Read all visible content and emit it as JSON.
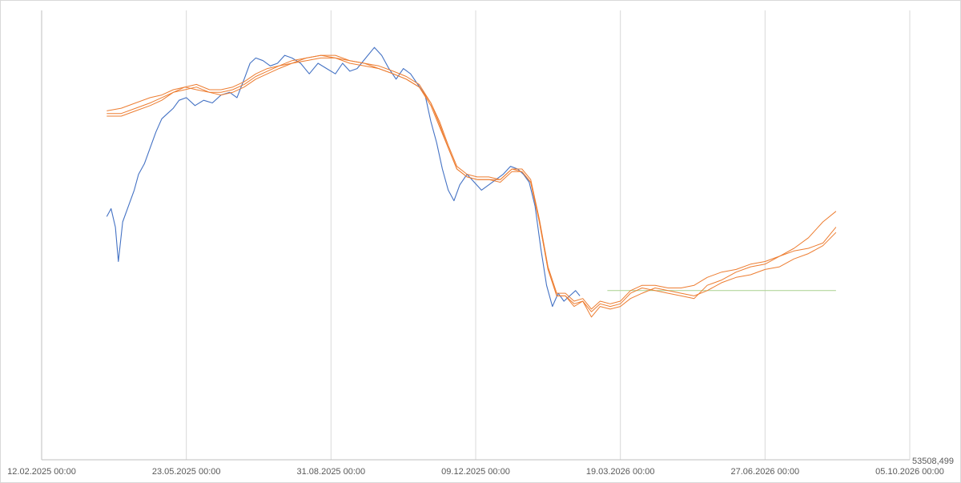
{
  "chart_data": {
    "type": "line",
    "title": "",
    "xlabel": "",
    "ylabel": "",
    "x_tick_labels": [
      "12.02.2025 00:00",
      "23.05.2025 00:00",
      "31.08.2025 00:00",
      "09.12.2025 00:00",
      "19.03.2026 00:00",
      "27.06.2026 00:00",
      "05.10.2026 00:00"
    ],
    "y_axis_corner_label": "53508,499",
    "grid": "vertical",
    "legend": "none",
    "x_axis_step_days": 100,
    "series": [
      {
        "role": "actual",
        "color": "#4472C4",
        "points": [
          [
            "2025-03-29",
            92
          ],
          [
            "2025-04-01",
            95
          ],
          [
            "2025-04-04",
            88
          ],
          [
            "2025-04-06",
            75
          ],
          [
            "2025-04-09",
            90
          ],
          [
            "2025-04-13",
            96
          ],
          [
            "2025-04-17",
            102
          ],
          [
            "2025-04-20",
            108
          ],
          [
            "2025-04-24",
            112
          ],
          [
            "2025-04-28",
            118
          ],
          [
            "2025-05-02",
            124
          ],
          [
            "2025-05-06",
            129
          ],
          [
            "2025-05-10",
            131
          ],
          [
            "2025-05-14",
            133
          ],
          [
            "2025-05-18",
            136
          ],
          [
            "2025-05-23",
            137
          ],
          [
            "2025-05-29",
            134
          ],
          [
            "2025-06-04",
            136
          ],
          [
            "2025-06-10",
            135
          ],
          [
            "2025-06-16",
            138
          ],
          [
            "2025-06-22",
            139
          ],
          [
            "2025-06-27",
            137
          ],
          [
            "2025-07-02",
            144
          ],
          [
            "2025-07-06",
            150
          ],
          [
            "2025-07-10",
            152
          ],
          [
            "2025-07-15",
            151
          ],
          [
            "2025-07-20",
            149
          ],
          [
            "2025-07-25",
            150
          ],
          [
            "2025-07-30",
            153
          ],
          [
            "2025-08-04",
            152
          ],
          [
            "2025-08-10",
            150
          ],
          [
            "2025-08-16",
            146
          ],
          [
            "2025-08-22",
            150
          ],
          [
            "2025-08-28",
            148
          ],
          [
            "2025-09-03",
            146
          ],
          [
            "2025-09-08",
            150
          ],
          [
            "2025-09-13",
            147
          ],
          [
            "2025-09-18",
            148
          ],
          [
            "2025-09-24",
            152
          ],
          [
            "2025-09-30",
            156
          ],
          [
            "2025-10-05",
            153
          ],
          [
            "2025-10-10",
            148
          ],
          [
            "2025-10-15",
            144
          ],
          [
            "2025-10-20",
            148
          ],
          [
            "2025-10-25",
            146
          ],
          [
            "2025-10-30",
            142
          ],
          [
            "2025-11-04",
            138
          ],
          [
            "2025-11-08",
            128
          ],
          [
            "2025-11-12",
            120
          ],
          [
            "2025-11-16",
            110
          ],
          [
            "2025-11-20",
            102
          ],
          [
            "2025-11-24",
            98
          ],
          [
            "2025-11-28",
            104
          ],
          [
            "2025-12-03",
            108
          ],
          [
            "2025-12-08",
            105
          ],
          [
            "2025-12-13",
            102
          ],
          [
            "2025-12-18",
            104
          ],
          [
            "2025-12-23",
            106
          ],
          [
            "2025-12-28",
            108
          ],
          [
            "2026-01-02",
            111
          ],
          [
            "2026-01-07",
            110
          ],
          [
            "2026-01-11",
            108
          ],
          [
            "2026-01-15",
            105
          ],
          [
            "2026-01-19",
            96
          ],
          [
            "2026-01-23",
            80
          ],
          [
            "2026-01-27",
            66
          ],
          [
            "2026-01-31",
            58
          ],
          [
            "2026-02-04",
            63
          ],
          [
            "2026-02-08",
            60
          ],
          [
            "2026-02-12",
            62
          ],
          [
            "2026-02-16",
            64
          ],
          [
            "2026-02-19",
            62
          ]
        ]
      },
      {
        "role": "forecast",
        "color": "#ED7D31",
        "points": [
          [
            "2025-03-29",
            130
          ],
          [
            "2025-04-08",
            130
          ],
          [
            "2025-04-18",
            132
          ],
          [
            "2025-04-28",
            134
          ],
          [
            "2025-05-06",
            136
          ],
          [
            "2025-05-14",
            139
          ],
          [
            "2025-05-22",
            140
          ],
          [
            "2025-05-30",
            141
          ],
          [
            "2025-06-08",
            139
          ],
          [
            "2025-06-16",
            138
          ],
          [
            "2025-06-24",
            139
          ],
          [
            "2025-07-02",
            141
          ],
          [
            "2025-07-10",
            144
          ],
          [
            "2025-07-18",
            146
          ],
          [
            "2025-07-26",
            148
          ],
          [
            "2025-08-04",
            150
          ],
          [
            "2025-08-14",
            151
          ],
          [
            "2025-08-24",
            152
          ],
          [
            "2025-09-03",
            152
          ],
          [
            "2025-09-13",
            150
          ],
          [
            "2025-09-23",
            149
          ],
          [
            "2025-10-03",
            148
          ],
          [
            "2025-10-13",
            146
          ],
          [
            "2025-10-22",
            144
          ],
          [
            "2025-10-31",
            141
          ],
          [
            "2025-11-08",
            134
          ],
          [
            "2025-11-14",
            126
          ],
          [
            "2025-11-20",
            118
          ],
          [
            "2025-11-26",
            110
          ],
          [
            "2025-12-03",
            107
          ],
          [
            "2025-12-10",
            106
          ],
          [
            "2025-12-18",
            106
          ],
          [
            "2025-12-26",
            105
          ],
          [
            "2026-01-03",
            109
          ],
          [
            "2026-01-10",
            109
          ],
          [
            "2026-01-16",
            105
          ],
          [
            "2026-01-22",
            90
          ],
          [
            "2026-01-28",
            72
          ],
          [
            "2026-02-03",
            62
          ],
          [
            "2026-02-09",
            62
          ],
          [
            "2026-02-15",
            58
          ],
          [
            "2026-02-21",
            60
          ],
          [
            "2026-02-27",
            54
          ],
          [
            "2026-03-05",
            58
          ],
          [
            "2026-03-12",
            57
          ],
          [
            "2026-03-19",
            58
          ],
          [
            "2026-03-26",
            61
          ],
          [
            "2026-04-03",
            63
          ],
          [
            "2026-04-12",
            65
          ],
          [
            "2026-04-21",
            64
          ],
          [
            "2026-04-30",
            63
          ],
          [
            "2026-05-09",
            62
          ],
          [
            "2026-05-18",
            64
          ],
          [
            "2026-05-28",
            67
          ],
          [
            "2026-06-07",
            69
          ],
          [
            "2026-06-17",
            70
          ],
          [
            "2026-06-27",
            72
          ],
          [
            "2026-07-07",
            73
          ],
          [
            "2026-07-17",
            76
          ],
          [
            "2026-07-27",
            78
          ],
          [
            "2026-08-06",
            81
          ],
          [
            "2026-08-15",
            86
          ]
        ]
      },
      {
        "role": "forecast-2",
        "color": "#ED7D31",
        "points": [
          [
            "2025-03-29",
            132
          ],
          [
            "2025-04-08",
            133
          ],
          [
            "2025-04-18",
            135
          ],
          [
            "2025-04-28",
            137
          ],
          [
            "2025-05-06",
            138
          ],
          [
            "2025-05-14",
            140
          ],
          [
            "2025-05-22",
            141
          ],
          [
            "2025-05-30",
            142
          ],
          [
            "2025-06-08",
            140
          ],
          [
            "2025-06-16",
            140
          ],
          [
            "2025-06-24",
            141
          ],
          [
            "2025-07-02",
            143
          ],
          [
            "2025-07-10",
            146
          ],
          [
            "2025-07-18",
            148
          ],
          [
            "2025-07-26",
            149
          ],
          [
            "2025-08-04",
            151
          ],
          [
            "2025-08-14",
            152
          ],
          [
            "2025-08-24",
            153
          ],
          [
            "2025-09-03",
            153
          ],
          [
            "2025-09-13",
            151
          ],
          [
            "2025-09-23",
            150
          ],
          [
            "2025-10-03",
            149
          ],
          [
            "2025-10-13",
            147
          ],
          [
            "2025-10-22",
            145
          ],
          [
            "2025-10-31",
            142
          ],
          [
            "2025-11-08",
            135
          ],
          [
            "2025-11-14",
            128
          ],
          [
            "2025-11-20",
            119
          ],
          [
            "2025-11-26",
            111
          ],
          [
            "2025-12-03",
            108
          ],
          [
            "2025-12-10",
            107
          ],
          [
            "2025-12-18",
            107
          ],
          [
            "2025-12-26",
            106
          ],
          [
            "2026-01-03",
            110
          ],
          [
            "2026-01-10",
            110
          ],
          [
            "2026-01-16",
            106
          ],
          [
            "2026-01-22",
            91
          ],
          [
            "2026-01-28",
            73
          ],
          [
            "2026-02-03",
            63
          ],
          [
            "2026-02-09",
            63
          ],
          [
            "2026-02-15",
            60
          ],
          [
            "2026-02-21",
            61
          ],
          [
            "2026-02-27",
            57
          ],
          [
            "2026-03-05",
            60
          ],
          [
            "2026-03-12",
            59
          ],
          [
            "2026-03-19",
            60
          ],
          [
            "2026-03-26",
            64
          ],
          [
            "2026-04-03",
            66
          ],
          [
            "2026-04-12",
            66
          ],
          [
            "2026-04-21",
            65
          ],
          [
            "2026-04-30",
            65
          ],
          [
            "2026-05-09",
            66
          ],
          [
            "2026-05-18",
            69
          ],
          [
            "2026-05-28",
            71
          ],
          [
            "2026-06-07",
            72
          ],
          [
            "2026-06-17",
            74
          ],
          [
            "2026-06-27",
            75
          ],
          [
            "2026-07-07",
            77
          ],
          [
            "2026-07-17",
            79
          ],
          [
            "2026-07-27",
            80
          ],
          [
            "2026-08-06",
            82
          ],
          [
            "2026-08-15",
            88
          ]
        ]
      },
      {
        "role": "forecast-3",
        "color": "#ED7D31",
        "points": [
          [
            "2025-03-29",
            131
          ],
          [
            "2025-04-08",
            131
          ],
          [
            "2025-04-18",
            133
          ],
          [
            "2025-04-28",
            135
          ],
          [
            "2025-05-06",
            137
          ],
          [
            "2025-05-14",
            139
          ],
          [
            "2025-05-22",
            141
          ],
          [
            "2025-05-30",
            140
          ],
          [
            "2025-06-08",
            139
          ],
          [
            "2025-06-16",
            139
          ],
          [
            "2025-06-24",
            140
          ],
          [
            "2025-07-02",
            142
          ],
          [
            "2025-07-10",
            145
          ],
          [
            "2025-07-18",
            147
          ],
          [
            "2025-07-26",
            149
          ],
          [
            "2025-08-04",
            150
          ],
          [
            "2025-08-14",
            152
          ],
          [
            "2025-08-24",
            153
          ],
          [
            "2025-09-03",
            152
          ],
          [
            "2025-09-13",
            151
          ],
          [
            "2025-09-23",
            150
          ],
          [
            "2025-10-03",
            148
          ],
          [
            "2025-10-13",
            146
          ],
          [
            "2025-10-22",
            144
          ],
          [
            "2025-10-31",
            141
          ],
          [
            "2025-11-08",
            135
          ],
          [
            "2025-11-14",
            127
          ],
          [
            "2025-11-20",
            118
          ],
          [
            "2025-11-26",
            110
          ],
          [
            "2025-12-03",
            107
          ],
          [
            "2025-12-10",
            106
          ],
          [
            "2025-12-18",
            106
          ],
          [
            "2025-12-26",
            106
          ],
          [
            "2026-01-03",
            110
          ],
          [
            "2026-01-10",
            109
          ],
          [
            "2026-01-16",
            105
          ],
          [
            "2026-01-22",
            90
          ],
          [
            "2026-01-28",
            72
          ],
          [
            "2026-02-03",
            62
          ],
          [
            "2026-02-09",
            62
          ],
          [
            "2026-02-15",
            59
          ],
          [
            "2026-02-21",
            60
          ],
          [
            "2026-02-27",
            56
          ],
          [
            "2026-03-05",
            59
          ],
          [
            "2026-03-12",
            58
          ],
          [
            "2026-03-19",
            59
          ],
          [
            "2026-03-26",
            63
          ],
          [
            "2026-04-03",
            65
          ],
          [
            "2026-04-12",
            64
          ],
          [
            "2026-04-21",
            63
          ],
          [
            "2026-04-30",
            62
          ],
          [
            "2026-05-09",
            61
          ],
          [
            "2026-05-18",
            66
          ],
          [
            "2026-05-28",
            68
          ],
          [
            "2026-06-07",
            71
          ],
          [
            "2026-06-17",
            73
          ],
          [
            "2026-06-27",
            74
          ],
          [
            "2026-07-07",
            77
          ],
          [
            "2026-07-17",
            80
          ],
          [
            "2026-07-27",
            84
          ],
          [
            "2026-08-06",
            90
          ],
          [
            "2026-08-15",
            94
          ]
        ]
      },
      {
        "role": "baseline",
        "color": "#A9D18E",
        "points": [
          [
            "2026-03-10",
            64
          ],
          [
            "2026-08-15",
            64
          ]
        ]
      }
    ],
    "x_range": [
      "2025-02-12",
      "2026-10-05"
    ],
    "ylim": [
      0,
      170
    ]
  }
}
